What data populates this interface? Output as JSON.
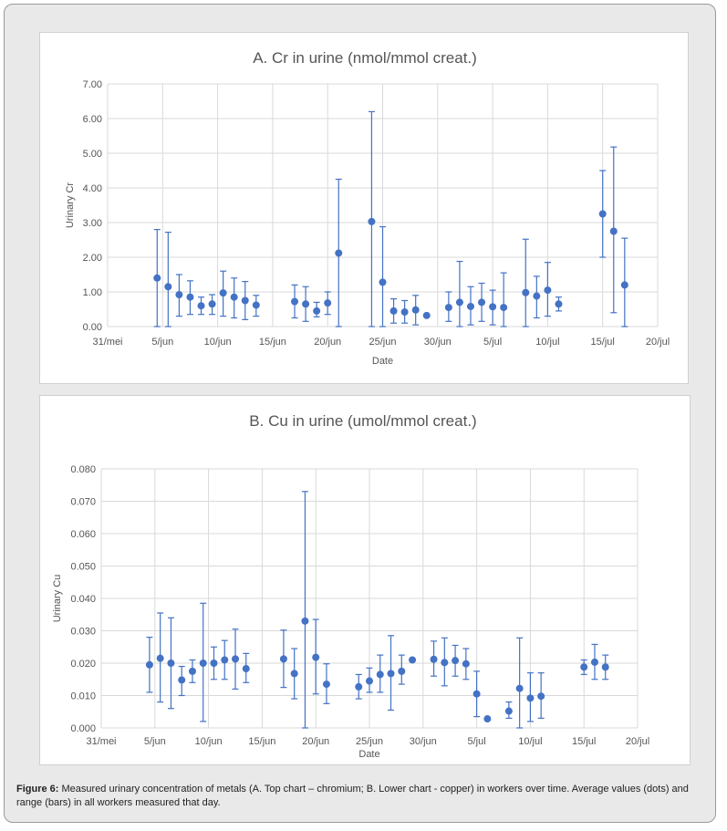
{
  "chart_data": [
    {
      "id": "chart-a",
      "type": "scatter",
      "title": "A.   Cr in urine (nmol/mmol creat.)",
      "xlabel": "Date",
      "ylabel": "Urinary Cr",
      "xlim": [
        0,
        50
      ],
      "ylim": [
        0,
        7
      ],
      "y_ticks": [
        0,
        1,
        2,
        3,
        4,
        5,
        6,
        7
      ],
      "y_tick_decimals": 2,
      "x_tick_values": [
        0,
        5,
        10,
        15,
        20,
        25,
        30,
        35,
        40,
        45,
        50
      ],
      "x_tick_labels": [
        "31/mei",
        "5/jun",
        "10/jun",
        "15/jun",
        "20/jun",
        "25/jun",
        "30/jun",
        "5/jul",
        "10/jul",
        "15/jul",
        "20/jul"
      ],
      "grid": true,
      "marker_color": "#4472c4",
      "series": [
        {
          "name": "Average (range)",
          "points": [
            {
              "x": 4.5,
              "mean": 1.4,
              "min": 0.0,
              "max": 2.8
            },
            {
              "x": 5.5,
              "mean": 1.15,
              "min": 0.0,
              "max": 2.72
            },
            {
              "x": 6.5,
              "mean": 0.92,
              "min": 0.3,
              "max": 1.5
            },
            {
              "x": 7.5,
              "mean": 0.85,
              "min": 0.35,
              "max": 1.32
            },
            {
              "x": 8.5,
              "mean": 0.6,
              "min": 0.35,
              "max": 0.85
            },
            {
              "x": 9.5,
              "mean": 0.65,
              "min": 0.35,
              "max": 0.92
            },
            {
              "x": 10.5,
              "mean": 0.97,
              "min": 0.3,
              "max": 1.6
            },
            {
              "x": 11.5,
              "mean": 0.85,
              "min": 0.25,
              "max": 1.4
            },
            {
              "x": 12.5,
              "mean": 0.75,
              "min": 0.2,
              "max": 1.3
            },
            {
              "x": 13.5,
              "mean": 0.62,
              "min": 0.3,
              "max": 0.9
            },
            {
              "x": 17.0,
              "mean": 0.72,
              "min": 0.25,
              "max": 1.2
            },
            {
              "x": 18.0,
              "mean": 0.65,
              "min": 0.15,
              "max": 1.15
            },
            {
              "x": 19.0,
              "mean": 0.45,
              "min": 0.28,
              "max": 0.7
            },
            {
              "x": 20.0,
              "mean": 0.68,
              "min": 0.35,
              "max": 1.0
            },
            {
              "x": 21.0,
              "mean": 2.12,
              "min": 0.0,
              "max": 4.25
            },
            {
              "x": 24.0,
              "mean": 3.03,
              "min": 0.0,
              "max": 6.2
            },
            {
              "x": 25.0,
              "mean": 1.28,
              "min": 0.0,
              "max": 2.88
            },
            {
              "x": 26.0,
              "mean": 0.45,
              "min": 0.1,
              "max": 0.8
            },
            {
              "x": 27.0,
              "mean": 0.42,
              "min": 0.1,
              "max": 0.75
            },
            {
              "x": 28.0,
              "mean": 0.48,
              "min": 0.05,
              "max": 0.9
            },
            {
              "x": 29.0,
              "mean": 0.32,
              "min": 0.32,
              "max": 0.32
            },
            {
              "x": 31.0,
              "mean": 0.55,
              "min": 0.15,
              "max": 1.0
            },
            {
              "x": 32.0,
              "mean": 0.7,
              "min": 0.0,
              "max": 1.88
            },
            {
              "x": 33.0,
              "mean": 0.58,
              "min": 0.05,
              "max": 1.15
            },
            {
              "x": 34.0,
              "mean": 0.7,
              "min": 0.15,
              "max": 1.25
            },
            {
              "x": 35.0,
              "mean": 0.57,
              "min": 0.05,
              "max": 1.05
            },
            {
              "x": 36.0,
              "mean": 0.55,
              "min": 0.0,
              "max": 1.55
            },
            {
              "x": 38.0,
              "mean": 0.98,
              "min": 0.0,
              "max": 2.52
            },
            {
              "x": 39.0,
              "mean": 0.88,
              "min": 0.25,
              "max": 1.45
            },
            {
              "x": 40.0,
              "mean": 1.05,
              "min": 0.3,
              "max": 1.85
            },
            {
              "x": 41.0,
              "mean": 0.65,
              "min": 0.45,
              "max": 0.85
            },
            {
              "x": 45.0,
              "mean": 3.25,
              "min": 2.0,
              "max": 4.5
            },
            {
              "x": 46.0,
              "mean": 2.75,
              "min": 0.4,
              "max": 5.18
            },
            {
              "x": 47.0,
              "mean": 1.2,
              "min": 0.0,
              "max": 2.55
            }
          ]
        }
      ]
    },
    {
      "id": "chart-b",
      "type": "scatter",
      "title": "B.   Cu in urine (umol/mmol creat.)",
      "xlabel": "Date",
      "ylabel": "Urinary Cu",
      "xlim": [
        0,
        50
      ],
      "ylim": [
        0,
        0.08
      ],
      "y_ticks": [
        0,
        0.01,
        0.02,
        0.03,
        0.04,
        0.05,
        0.06,
        0.07,
        0.08
      ],
      "y_tick_decimals": 3,
      "x_tick_values": [
        0,
        5,
        10,
        15,
        20,
        25,
        30,
        35,
        40,
        45,
        50
      ],
      "x_tick_labels": [
        "31/mei",
        "5/jun",
        "10/jun",
        "15/jun",
        "20/jun",
        "25/jun",
        "30/jun",
        "5/jul",
        "10/jul",
        "15/jul",
        "20/jul"
      ],
      "grid": true,
      "marker_color": "#4472c4",
      "series": [
        {
          "name": "Average (range)",
          "points": [
            {
              "x": 4.5,
              "mean": 0.0195,
              "min": 0.011,
              "max": 0.028
            },
            {
              "x": 5.5,
              "mean": 0.0215,
              "min": 0.008,
              "max": 0.0355
            },
            {
              "x": 6.5,
              "mean": 0.02,
              "min": 0.006,
              "max": 0.034
            },
            {
              "x": 7.5,
              "mean": 0.0148,
              "min": 0.01,
              "max": 0.019
            },
            {
              "x": 8.5,
              "mean": 0.0175,
              "min": 0.014,
              "max": 0.021
            },
            {
              "x": 9.5,
              "mean": 0.02,
              "min": 0.002,
              "max": 0.0385
            },
            {
              "x": 10.5,
              "mean": 0.02,
              "min": 0.015,
              "max": 0.025
            },
            {
              "x": 11.5,
              "mean": 0.021,
              "min": 0.015,
              "max": 0.027
            },
            {
              "x": 12.5,
              "mean": 0.0213,
              "min": 0.012,
              "max": 0.0305
            },
            {
              "x": 13.5,
              "mean": 0.0183,
              "min": 0.014,
              "max": 0.023
            },
            {
              "x": 17.0,
              "mean": 0.0213,
              "min": 0.0125,
              "max": 0.0302
            },
            {
              "x": 18.0,
              "mean": 0.0168,
              "min": 0.009,
              "max": 0.0245
            },
            {
              "x": 19.0,
              "mean": 0.033,
              "min": 0.0,
              "max": 0.073
            },
            {
              "x": 20.0,
              "mean": 0.0218,
              "min": 0.0105,
              "max": 0.0335
            },
            {
              "x": 21.0,
              "mean": 0.0135,
              "min": 0.0075,
              "max": 0.0198
            },
            {
              "x": 24.0,
              "mean": 0.0127,
              "min": 0.009,
              "max": 0.0165
            },
            {
              "x": 25.0,
              "mean": 0.0145,
              "min": 0.011,
              "max": 0.0185
            },
            {
              "x": 26.0,
              "mean": 0.0165,
              "min": 0.011,
              "max": 0.0225
            },
            {
              "x": 27.0,
              "mean": 0.0168,
              "min": 0.0055,
              "max": 0.0285
            },
            {
              "x": 28.0,
              "mean": 0.0175,
              "min": 0.0135,
              "max": 0.0225
            },
            {
              "x": 29.0,
              "mean": 0.021,
              "min": 0.021,
              "max": 0.021
            },
            {
              "x": 31.0,
              "mean": 0.0212,
              "min": 0.016,
              "max": 0.0268
            },
            {
              "x": 32.0,
              "mean": 0.0202,
              "min": 0.013,
              "max": 0.0278
            },
            {
              "x": 33.0,
              "mean": 0.0208,
              "min": 0.016,
              "max": 0.0255
            },
            {
              "x": 34.0,
              "mean": 0.0198,
              "min": 0.015,
              "max": 0.0245
            },
            {
              "x": 35.0,
              "mean": 0.0105,
              "min": 0.0035,
              "max": 0.0175
            },
            {
              "x": 36.0,
              "mean": 0.0028,
              "min": 0.0028,
              "max": 0.0028
            },
            {
              "x": 38.0,
              "mean": 0.0052,
              "min": 0.003,
              "max": 0.008
            },
            {
              "x": 39.0,
              "mean": 0.0122,
              "min": 0.0,
              "max": 0.0278
            },
            {
              "x": 40.0,
              "mean": 0.0092,
              "min": 0.002,
              "max": 0.017
            },
            {
              "x": 41.0,
              "mean": 0.0098,
              "min": 0.003,
              "max": 0.017
            },
            {
              "x": 45.0,
              "mean": 0.0188,
              "min": 0.0165,
              "max": 0.021
            },
            {
              "x": 46.0,
              "mean": 0.0203,
              "min": 0.015,
              "max": 0.0258
            },
            {
              "x": 47.0,
              "mean": 0.0188,
              "min": 0.015,
              "max": 0.0225
            }
          ]
        }
      ]
    }
  ],
  "caption": {
    "label": "Figure 6:",
    "text": " Measured urinary concentration of metals (A. Top chart – chromium; B. Lower chart - copper) in workers over time. Average values (dots) and range (bars) in all workers measured that day."
  }
}
